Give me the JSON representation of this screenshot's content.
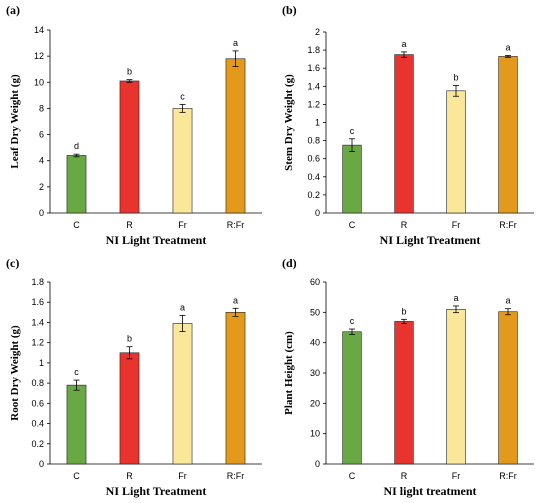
{
  "panels": [
    {
      "label": "(a)"
    },
    {
      "label": "(b)"
    },
    {
      "label": "(c)"
    },
    {
      "label": "(d)"
    }
  ],
  "colors": {
    "C": "#6aa843",
    "R": "#e8332f",
    "Fr": "#fbe79a",
    "R:Fr": "#e39a1c",
    "axis": "#000000",
    "errorbar": "#000000"
  },
  "chart_data": [
    {
      "type": "bar",
      "categories": [
        "C",
        "R",
        "Fr",
        "R:Fr"
      ],
      "values": [
        4.4,
        10.1,
        8.0,
        11.8
      ],
      "errors": [
        0.1,
        0.1,
        0.3,
        0.6
      ],
      "letters": [
        "d",
        "b",
        "c",
        "a"
      ],
      "xlabel": "NI Light Treatment",
      "ylabel": "Leaf Dry Weight (g)",
      "ylim": [
        0,
        14
      ],
      "yticks": [
        "0",
        "2",
        "4",
        "6",
        "8",
        "10",
        "12",
        "14"
      ],
      "grid": false,
      "legend": "none"
    },
    {
      "type": "bar",
      "categories": [
        "C",
        "R",
        "Fr",
        "R:Fr"
      ],
      "values": [
        0.75,
        1.75,
        1.35,
        1.73
      ],
      "errors": [
        0.07,
        0.03,
        0.06,
        0.01
      ],
      "letters": [
        "c",
        "a",
        "b",
        "a"
      ],
      "xlabel": "NI Light Treatment",
      "ylabel": "Stem Dry Weight (g)",
      "ylim": [
        0,
        2
      ],
      "yticks": [
        "0",
        "0.2",
        "0.4",
        "0.6",
        "0.8",
        "1",
        "1.2",
        "1.4",
        "1.6",
        "1.8",
        "2"
      ],
      "grid": false,
      "legend": "none"
    },
    {
      "type": "bar",
      "categories": [
        "C",
        "R",
        "Fr",
        "R:Fr"
      ],
      "values": [
        0.78,
        1.1,
        1.39,
        1.5
      ],
      "errors": [
        0.05,
        0.06,
        0.08,
        0.04
      ],
      "letters": [
        "c",
        "b",
        "a",
        "a"
      ],
      "xlabel": "NI Light Treatment",
      "ylabel": "Root Dry Weight (g)",
      "ylim": [
        0,
        1.8
      ],
      "yticks": [
        "0",
        "0.2",
        "0.4",
        "0.6",
        "0.8",
        "1",
        "1.2",
        "1.4",
        "1.6",
        "1.8"
      ],
      "grid": false,
      "legend": "none"
    },
    {
      "type": "bar",
      "categories": [
        "C",
        "R",
        "Fr",
        "R:Fr"
      ],
      "values": [
        43.6,
        47.0,
        51.0,
        50.2
      ],
      "errors": [
        0.9,
        0.7,
        1.1,
        1.0
      ],
      "letters": [
        "c",
        "b",
        "a",
        "a"
      ],
      "xlabel": "NI light treatment",
      "ylabel": "Plant Height (cm)",
      "ylim": [
        0,
        60
      ],
      "yticks": [
        "0",
        "10",
        "20",
        "30",
        "40",
        "50",
        "60"
      ],
      "grid": false,
      "legend": "none"
    }
  ]
}
